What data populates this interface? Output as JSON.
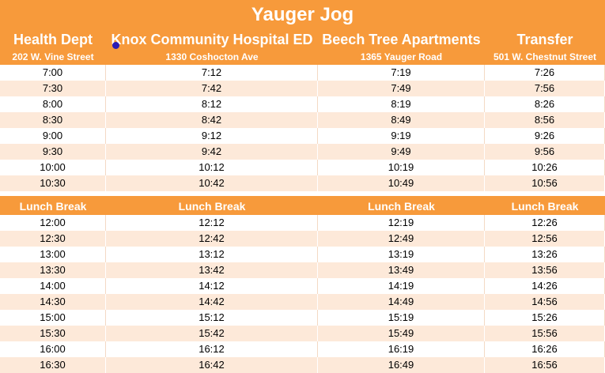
{
  "title": "Yauger Jog",
  "stops": [
    {
      "name": "Health Dept",
      "address": "202 W. Vine Street"
    },
    {
      "name": "Knox Community Hospital ED",
      "address": "1330 Coshocton Ave"
    },
    {
      "name": "Beech Tree Apartments",
      "address": "1365 Yauger Road"
    },
    {
      "name": "Transfer",
      "address": "501 W. Chestnut Street"
    }
  ],
  "morning": [
    [
      "7:00",
      "7:12",
      "7:19",
      "7:26"
    ],
    [
      "7:30",
      "7:42",
      "7:49",
      "7:56"
    ],
    [
      "8:00",
      "8:12",
      "8:19",
      "8:26"
    ],
    [
      "8:30",
      "8:42",
      "8:49",
      "8:56"
    ],
    [
      "9:00",
      "9:12",
      "9:19",
      "9:26"
    ],
    [
      "9:30",
      "9:42",
      "9:49",
      "9:56"
    ],
    [
      "10:00",
      "10:12",
      "10:19",
      "10:26"
    ],
    [
      "10:30",
      "10:42",
      "10:49",
      "10:56"
    ]
  ],
  "lunch_label": "Lunch Break",
  "afternoon": [
    [
      "12:00",
      "12:12",
      "12:19",
      "12:26"
    ],
    [
      "12:30",
      "12:42",
      "12:49",
      "12:56"
    ],
    [
      "13:00",
      "13:12",
      "13:19",
      "13:26"
    ],
    [
      "13:30",
      "13:42",
      "13:49",
      "13:56"
    ],
    [
      "14:00",
      "14:12",
      "14:19",
      "14:26"
    ],
    [
      "14:30",
      "14:42",
      "14:49",
      "14:56"
    ],
    [
      "15:00",
      "15:12",
      "15:19",
      "15:26"
    ],
    [
      "15:30",
      "15:42",
      "15:49",
      "15:56"
    ],
    [
      "16:00",
      "16:12",
      "16:19",
      "16:26"
    ],
    [
      "16:30",
      "16:42",
      "16:49",
      "16:56"
    ]
  ],
  "colors": {
    "header_orange": "#F79A3B",
    "band_peach": "#FDE9D9",
    "cursor_blue": "#2B1BB5"
  }
}
